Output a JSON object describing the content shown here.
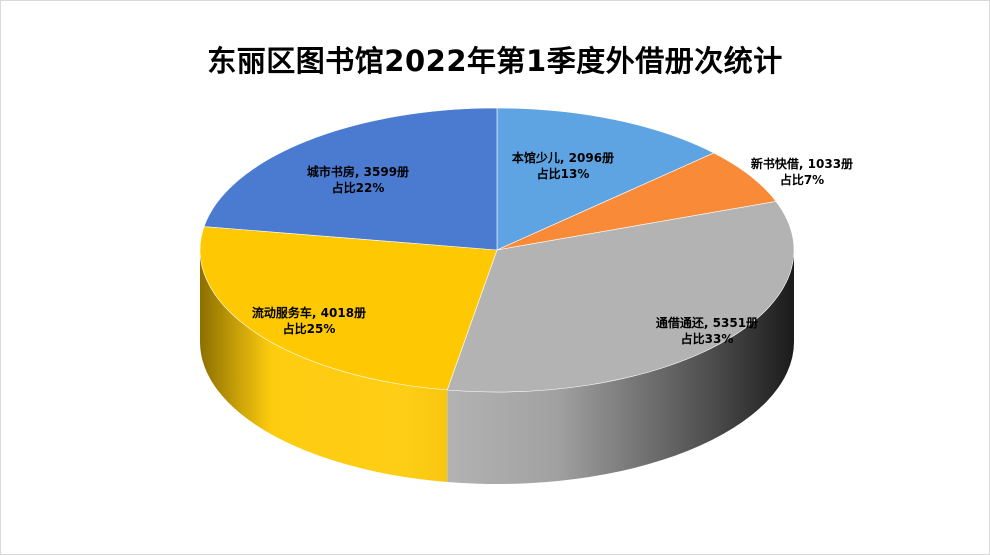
{
  "chart_data": {
    "type": "pie",
    "title": "东丽区图书馆2022年第1季度外借册次统计",
    "slices": [
      {
        "label": "本馆少儿",
        "value": 2096,
        "value_text": "2096册",
        "percent_text": "占比13%",
        "color": "#5fa4e2"
      },
      {
        "label": "新书快借",
        "value": 1033,
        "value_text": "1033册",
        "percent_text": "占比7%",
        "color": "#f98a38"
      },
      {
        "label": "通借通还",
        "value": 5351,
        "value_text": "5351册",
        "percent_text": "占比33%",
        "color": "#b3b3b3"
      },
      {
        "label": "流动服务车",
        "value": 4018,
        "value_text": "4018册",
        "percent_text": "占比25%",
        "color": "#fec902"
      },
      {
        "label": "城市书房",
        "value": 3599,
        "value_text": "3599册",
        "percent_text": "占比22%",
        "color": "#4a7bd0"
      }
    ],
    "legend": "none",
    "data_labels": "on-slice"
  }
}
